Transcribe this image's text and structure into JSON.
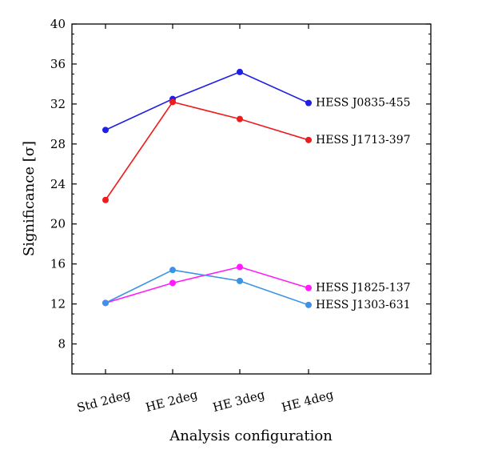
{
  "chart_data": {
    "type": "line",
    "title": "",
    "xlabel": "Analysis configuration",
    "ylabel": "Significance [σ]",
    "categories": [
      "Std 2deg",
      "HE 2deg",
      "HE 3deg",
      "HE 4deg"
    ],
    "ylim": [
      5,
      40
    ],
    "yticks": [
      8,
      12,
      16,
      20,
      24,
      28,
      32,
      36,
      40
    ],
    "grid": false,
    "legend": "inline labels at right end of each line",
    "series": [
      {
        "name": "HESS J0835-455",
        "color": "#1f1fe6",
        "values": [
          29.4,
          32.5,
          35.2,
          32.1
        ]
      },
      {
        "name": "HESS J1713-397",
        "color": "#ee1c1c",
        "values": [
          22.4,
          32.2,
          30.5,
          28.4
        ]
      },
      {
        "name": "HESS J1825-137",
        "color": "#ff1aff",
        "values": [
          12.1,
          14.1,
          15.7,
          13.6
        ]
      },
      {
        "name": "HESS J1303-631",
        "color": "#3a93e6",
        "values": [
          12.1,
          15.4,
          14.3,
          11.9
        ]
      }
    ]
  }
}
